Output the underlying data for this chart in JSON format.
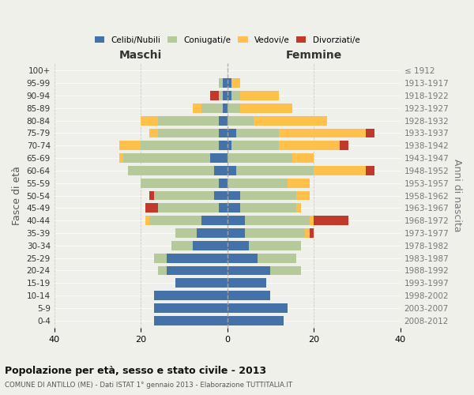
{
  "age_groups": [
    "0-4",
    "5-9",
    "10-14",
    "15-19",
    "20-24",
    "25-29",
    "30-34",
    "35-39",
    "40-44",
    "45-49",
    "50-54",
    "55-59",
    "60-64",
    "65-69",
    "70-74",
    "75-79",
    "80-84",
    "85-89",
    "90-94",
    "95-99",
    "100+"
  ],
  "birth_years": [
    "2008-2012",
    "2003-2007",
    "1998-2002",
    "1993-1997",
    "1988-1992",
    "1983-1987",
    "1978-1982",
    "1973-1977",
    "1968-1972",
    "1963-1967",
    "1958-1962",
    "1953-1957",
    "1948-1952",
    "1943-1947",
    "1938-1942",
    "1933-1937",
    "1928-1932",
    "1923-1927",
    "1918-1922",
    "1913-1917",
    "≤ 1912"
  ],
  "males": {
    "celibi": [
      17,
      17,
      17,
      12,
      14,
      14,
      8,
      7,
      6,
      2,
      3,
      2,
      3,
      4,
      2,
      2,
      2,
      1,
      1,
      1,
      0
    ],
    "coniugati": [
      0,
      0,
      0,
      0,
      2,
      3,
      5,
      5,
      12,
      14,
      14,
      18,
      20,
      20,
      18,
      14,
      14,
      5,
      1,
      1,
      0
    ],
    "vedovi": [
      0,
      0,
      0,
      0,
      0,
      0,
      0,
      0,
      1,
      0,
      0,
      0,
      0,
      1,
      5,
      2,
      4,
      2,
      0,
      0,
      0
    ],
    "divorziati": [
      0,
      0,
      0,
      0,
      0,
      0,
      0,
      0,
      0,
      3,
      1,
      0,
      0,
      0,
      0,
      0,
      0,
      0,
      2,
      0,
      0
    ]
  },
  "females": {
    "nubili": [
      13,
      14,
      10,
      9,
      10,
      7,
      5,
      4,
      4,
      3,
      3,
      0,
      2,
      0,
      1,
      2,
      0,
      0,
      1,
      1,
      0
    ],
    "coniugate": [
      0,
      0,
      0,
      0,
      7,
      9,
      12,
      14,
      15,
      13,
      13,
      14,
      18,
      15,
      11,
      10,
      6,
      3,
      2,
      0,
      0
    ],
    "vedove": [
      0,
      0,
      0,
      0,
      0,
      0,
      0,
      1,
      1,
      1,
      3,
      5,
      12,
      5,
      14,
      20,
      17,
      12,
      9,
      2,
      0
    ],
    "divorziate": [
      0,
      0,
      0,
      0,
      0,
      0,
      0,
      1,
      8,
      0,
      0,
      0,
      2,
      0,
      2,
      2,
      0,
      0,
      0,
      0,
      0
    ]
  },
  "colors": {
    "celibi": "#4472a8",
    "coniugati": "#b5c99a",
    "vedovi": "#ffc04c",
    "divorziati": "#c0392b"
  },
  "xlim": 40,
  "title": "Popolazione per età, sesso e stato civile - 2013",
  "subtitle": "COMUNE DI ANTILLO (ME) - Dati ISTAT 1° gennaio 2013 - Elaborazione TUTTITALIA.IT",
  "xlabel_left": "Maschi",
  "xlabel_right": "Femmine",
  "ylabel_left": "Fasce di età",
  "ylabel_right": "Anni di nascita",
  "bg_color": "#f0f0eb",
  "bar_height": 0.75
}
